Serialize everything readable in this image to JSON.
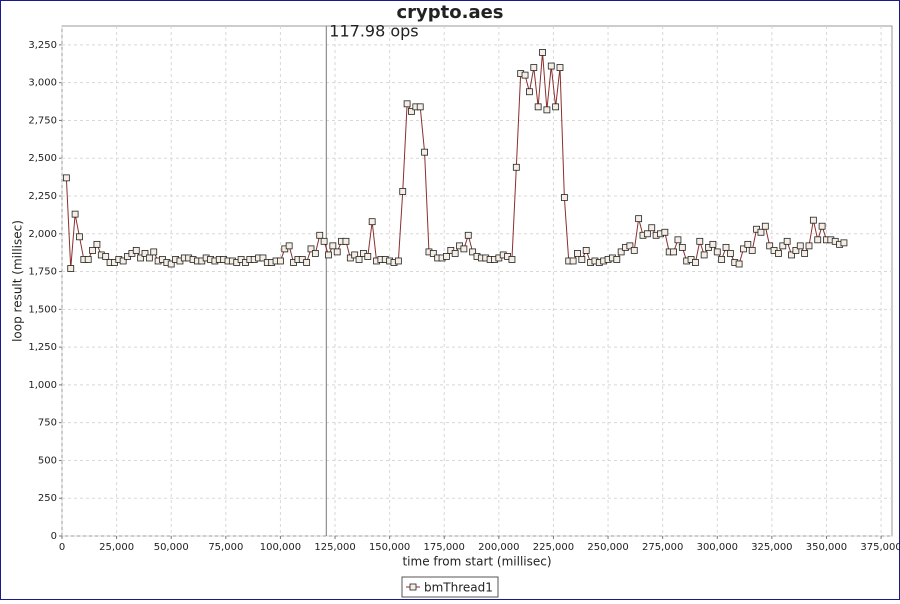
{
  "chart_data": {
    "type": "line",
    "title": "crypto.aes",
    "xlabel": "time from start (millisec)",
    "ylabel": "loop result (millisec)",
    "marker": {
      "x": 121000,
      "label": "117.98 ops"
    },
    "grid": true,
    "legend": "bottom",
    "xlim": [
      0,
      380000
    ],
    "ylim": [
      0,
      3375
    ],
    "xticks": [
      0,
      {
        "value": 25000,
        "label": "25,000"
      },
      {
        "value": 50000,
        "label": "50,000"
      },
      {
        "value": 75000,
        "label": "75,000"
      },
      {
        "value": 100000,
        "label": "100,000"
      },
      {
        "value": 125000,
        "label": "125,000"
      },
      {
        "value": 150000,
        "label": "150,000"
      },
      {
        "value": 175000,
        "label": "175,000"
      },
      {
        "value": 200000,
        "label": "200,000"
      },
      {
        "value": 225000,
        "label": "225,000"
      },
      {
        "value": 250000,
        "label": "250,000"
      },
      {
        "value": 275000,
        "label": "275,000"
      },
      {
        "value": 300000,
        "label": "300,000"
      },
      {
        "value": 325000,
        "label": "325,000"
      },
      {
        "value": 350000,
        "label": "350,000"
      },
      {
        "value": 375000,
        "label": "375,000"
      }
    ],
    "yticks": [
      0,
      250,
      500,
      750,
      {
        "value": 1000,
        "label": "1,000"
      },
      {
        "value": 1250,
        "label": "1,250"
      },
      {
        "value": 1500,
        "label": "1,500"
      },
      {
        "value": 1750,
        "label": "1,750"
      },
      {
        "value": 2000,
        "label": "2,000"
      },
      {
        "value": 2250,
        "label": "2,250"
      },
      {
        "value": 2500,
        "label": "2,500"
      },
      {
        "value": 2750,
        "label": "2,750"
      },
      {
        "value": 3000,
        "label": "3,000"
      },
      {
        "value": 3250,
        "label": "3,250"
      }
    ],
    "x": [
      2000,
      4000,
      6000,
      8000,
      10000,
      12000,
      14000,
      16000,
      18000,
      20000,
      22000,
      24000,
      26000,
      28000,
      30000,
      32000,
      34000,
      36000,
      38000,
      40000,
      42000,
      44000,
      46000,
      48000,
      50000,
      52000,
      54000,
      56000,
      58000,
      60000,
      62000,
      64000,
      66000,
      68000,
      70000,
      72000,
      74000,
      76000,
      78000,
      80000,
      82000,
      84000,
      86000,
      88000,
      90000,
      92000,
      94000,
      96000,
      98000,
      100000,
      102000,
      104000,
      106000,
      108000,
      110000,
      112000,
      114000,
      116000,
      118000,
      120000,
      122000,
      124000,
      126000,
      128000,
      130000,
      132000,
      134000,
      136000,
      138000,
      140000,
      142000,
      144000,
      146000,
      148000,
      150000,
      152000,
      154000,
      156000,
      158000,
      160000,
      162000,
      164000,
      166000,
      168000,
      170000,
      172000,
      174000,
      176000,
      178000,
      180000,
      182000,
      184000,
      186000,
      188000,
      190000,
      192000,
      194000,
      196000,
      198000,
      200000,
      202000,
      204000,
      206000,
      208000,
      210000,
      212000,
      214000,
      216000,
      218000,
      220000,
      222000,
      224000,
      226000,
      228000,
      230000,
      232000,
      234000,
      236000,
      238000,
      240000,
      242000,
      244000,
      246000,
      248000,
      250000,
      252000,
      254000,
      256000,
      258000,
      260000,
      262000,
      264000,
      266000,
      268000,
      270000,
      272000,
      274000,
      276000,
      278000,
      280000,
      282000,
      284000,
      286000,
      288000,
      290000,
      292000,
      294000,
      296000,
      298000,
      300000,
      302000,
      304000,
      306000,
      308000,
      310000,
      312000,
      314000,
      316000,
      318000,
      320000,
      322000,
      324000,
      326000,
      328000,
      330000,
      332000,
      334000,
      336000,
      338000,
      340000,
      342000,
      344000,
      346000,
      348000,
      350000,
      352000,
      354000,
      356000,
      358000
    ],
    "series": [
      {
        "name": "bmThread1",
        "color": "#8b2e2e",
        "marker_fill": "#f4eee4",
        "values": [
          2370,
          1770,
          2130,
          1980,
          1830,
          1830,
          1890,
          1930,
          1860,
          1850,
          1810,
          1810,
          1830,
          1820,
          1850,
          1870,
          1890,
          1840,
          1870,
          1840,
          1880,
          1820,
          1830,
          1810,
          1800,
          1830,
          1820,
          1840,
          1840,
          1830,
          1820,
          1820,
          1840,
          1830,
          1820,
          1830,
          1830,
          1820,
          1820,
          1810,
          1830,
          1810,
          1830,
          1830,
          1840,
          1840,
          1810,
          1810,
          1820,
          1820,
          1900,
          1920,
          1810,
          1830,
          1830,
          1810,
          1900,
          1870,
          1990,
          1950,
          1860,
          1920,
          1880,
          1950,
          1950,
          1840,
          1860,
          1830,
          1870,
          1850,
          2080,
          1820,
          1830,
          1830,
          1820,
          1810,
          1820,
          2280,
          2860,
          2810,
          2840,
          2840,
          2540,
          1880,
          1870,
          1840,
          1840,
          1850,
          1890,
          1870,
          1920,
          1900,
          1990,
          1880,
          1850,
          1840,
          1840,
          1830,
          1830,
          1840,
          1860,
          1850,
          1830,
          2440,
          3060,
          3050,
          2940,
          3100,
          2840,
          3200,
          2820,
          3110,
          2840,
          3100,
          2240,
          1820,
          1820,
          1870,
          1830,
          1890,
          1810,
          1820,
          1810,
          1820,
          1830,
          1840,
          1830,
          1880,
          1910,
          1920,
          1890,
          2100,
          1990,
          2000,
          2040,
          1990,
          2000,
          2010,
          1880,
          1880,
          1960,
          1910,
          1820,
          1830,
          1810,
          1950,
          1860,
          1910,
          1930,
          1880,
          1830,
          1910,
          1870,
          1810,
          1800,
          1900,
          1930,
          1890,
          2030,
          2010,
          2050,
          1920,
          1890,
          1870,
          1920,
          1950,
          1860,
          1890,
          1920,
          1870,
          1920,
          2090,
          1960,
          2050,
          1960,
          1960,
          1950,
          1930,
          1940
        ]
      }
    ]
  }
}
